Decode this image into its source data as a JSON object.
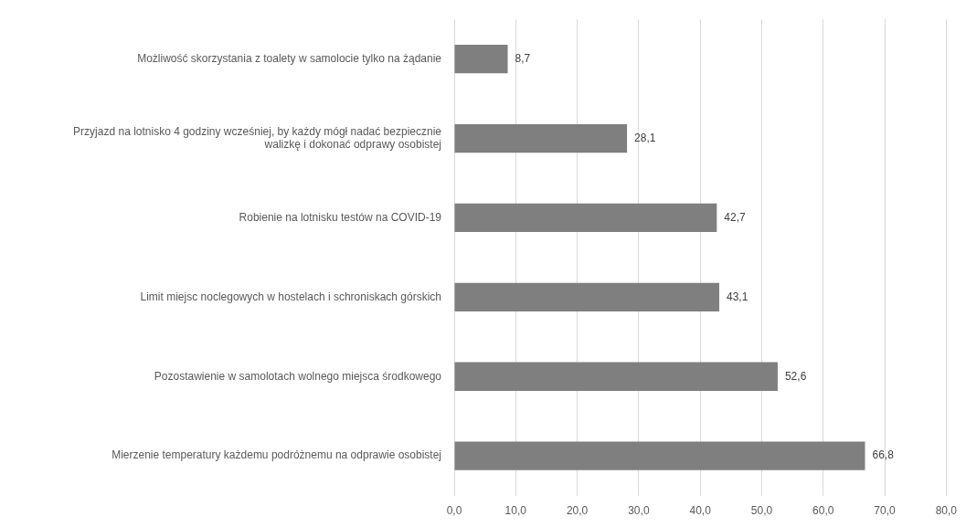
{
  "chart_data": {
    "type": "bar",
    "orientation": "horizontal",
    "categories": [
      "Możliwość skorzystania z toalety w samolocie tylko na żądanie",
      "Przyjazd na lotnisko 4 godziny wcześniej, by każdy mógł nadać bezpiecznie walizkę i dokonać odprawy osobistej",
      "Robienie na lotnisku testów na COVID-19",
      "Limit miejsc noclegowych w hostelach i schroniskach górskich",
      "Pozostawienie w samolotach wolnego miejsca środkowego",
      "Mierzenie temperatury każdemu podróżnemu na odprawie osobistej"
    ],
    "values": [
      8.7,
      28.1,
      42.7,
      43.1,
      52.6,
      66.8
    ],
    "color": "#7f7f7f",
    "value_labels": [
      "8,7",
      "28,1",
      "42,7",
      "43,1",
      "52,6",
      "66,8"
    ],
    "xlim": [
      0,
      80
    ],
    "xticks": [
      {
        "value": 0,
        "label": "0,0"
      },
      {
        "value": 10,
        "label": "10,0"
      },
      {
        "value": 20,
        "label": "20,0"
      },
      {
        "value": 30,
        "label": "30,0"
      },
      {
        "value": 40,
        "label": "40,0"
      },
      {
        "value": 50,
        "label": "50,0"
      },
      {
        "value": 60,
        "label": "60,0"
      },
      {
        "value": 70,
        "label": "70,0"
      },
      {
        "value": 80,
        "label": "80,0"
      }
    ],
    "grid": "x"
  }
}
